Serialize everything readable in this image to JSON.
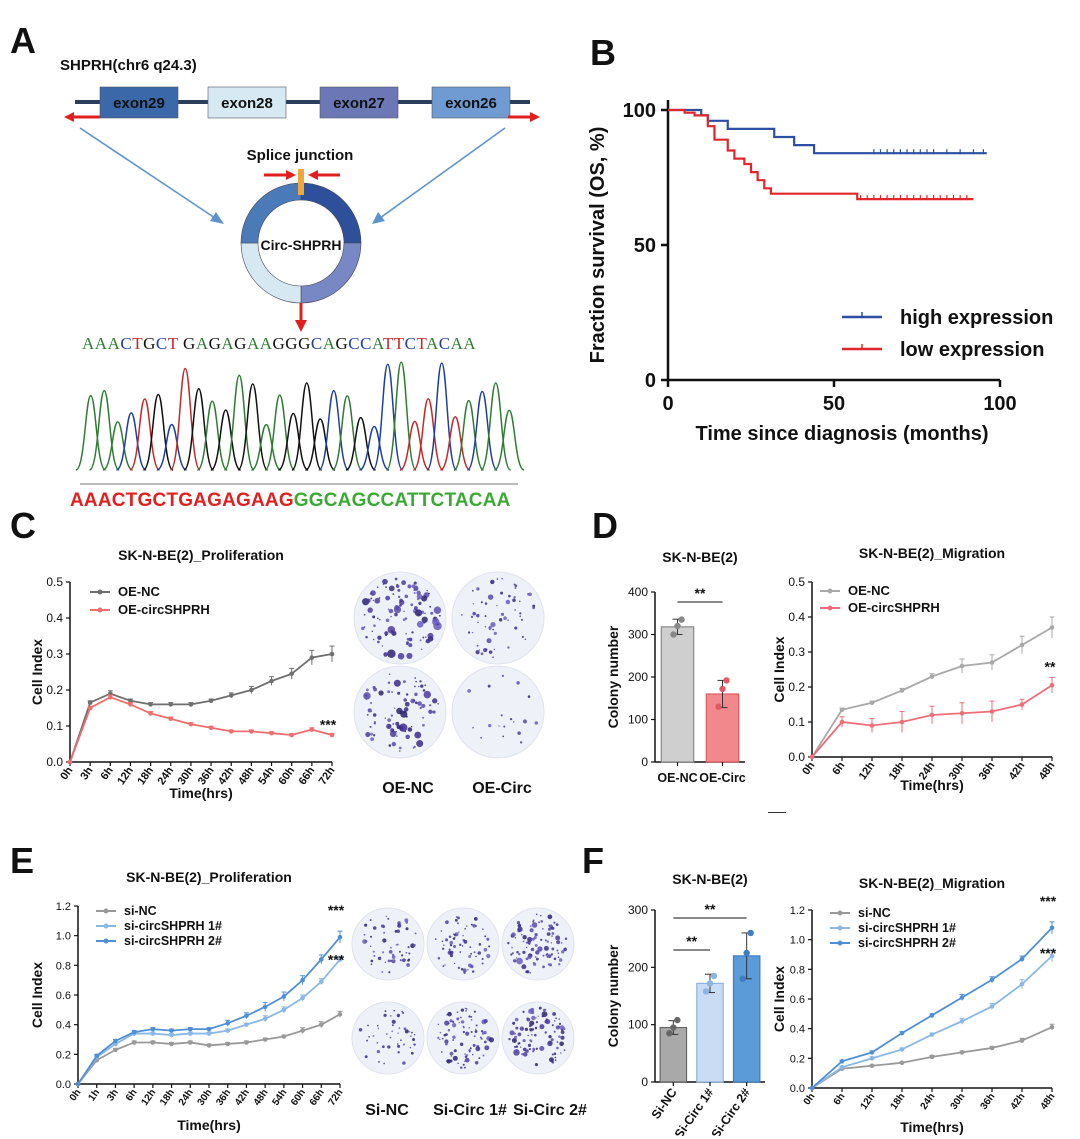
{
  "panels": {
    "A": "A",
    "B": "B",
    "C": "C",
    "D": "D",
    "E": "E",
    "F": "F"
  },
  "panelA": {
    "gene_title": "SHPRH(chr6 q24.3)",
    "exons": [
      {
        "label": "exon29",
        "color": "#3b68a8"
      },
      {
        "label": "exon28",
        "color": "#d7e9f3"
      },
      {
        "label": "exon27",
        "color": "#6b78b5"
      },
      {
        "label": "exon26",
        "color": "#6f9bd2"
      }
    ],
    "splice_label": "Splice junction",
    "circ_label": "Circ-SHPRH",
    "seq_top": [
      {
        "b": "A",
        "c": "#2e7d32"
      },
      {
        "b": "A",
        "c": "#2e7d32"
      },
      {
        "b": "A",
        "c": "#2e7d32"
      },
      {
        "b": "C",
        "c": "#1f3fa0"
      },
      {
        "b": "T",
        "c": "#c62828"
      },
      {
        "b": "G",
        "c": "#111111"
      },
      {
        "b": "C",
        "c": "#1f3fa0"
      },
      {
        "b": "T",
        "c": "#c62828"
      },
      {
        "b": " ",
        "c": "#111"
      },
      {
        "b": "G",
        "c": "#111111"
      },
      {
        "b": "A",
        "c": "#2e7d32"
      },
      {
        "b": "G",
        "c": "#111111"
      },
      {
        "b": "A",
        "c": "#2e7d32"
      },
      {
        "b": "G",
        "c": "#111111"
      },
      {
        "b": "A",
        "c": "#2e7d32"
      },
      {
        "b": "A",
        "c": "#2e7d32"
      },
      {
        "b": "G",
        "c": "#111111"
      },
      {
        "b": "G",
        "c": "#111111"
      },
      {
        "b": "G",
        "c": "#111111"
      },
      {
        "b": "C",
        "c": "#1f3fa0"
      },
      {
        "b": "A",
        "c": "#2e7d32"
      },
      {
        "b": "G",
        "c": "#111111"
      },
      {
        "b": "C",
        "c": "#1f3fa0"
      },
      {
        "b": "C",
        "c": "#1f3fa0"
      },
      {
        "b": "A",
        "c": "#2e7d32"
      },
      {
        "b": "T",
        "c": "#c62828"
      },
      {
        "b": "T",
        "c": "#c62828"
      },
      {
        "b": "C",
        "c": "#1f3fa0"
      },
      {
        "b": "T",
        "c": "#c62828"
      },
      {
        "b": "A",
        "c": "#2e7d32"
      },
      {
        "b": "C",
        "c": "#1f3fa0"
      },
      {
        "b": "A",
        "c": "#2e7d32"
      },
      {
        "b": "A",
        "c": "#2e7d32"
      }
    ],
    "seq_red": "AAACTGCTGAGAGAAG",
    "seq_green": "GGCAGCCATTCTACAA",
    "seq_red_color": "#e02020",
    "seq_green_color": "#3aaa35"
  },
  "chart_data": [
    {
      "id": "B",
      "type": "line",
      "title": "",
      "xlabel": "Time since diagnosis (months)",
      "ylabel": "Fraction survival (OS, %)",
      "xlim": [
        0,
        100
      ],
      "ylim": [
        0,
        100
      ],
      "xticks": [
        "0",
        "50",
        "100"
      ],
      "yticks": [
        "0",
        "50",
        "100"
      ],
      "legend_position": "bottom-right",
      "series": [
        {
          "name": "high expression",
          "color": "#2a4fa3",
          "steps": [
            [
              0,
              100
            ],
            [
              10,
              98
            ],
            [
              12,
              96
            ],
            [
              18,
              93
            ],
            [
              32,
              90
            ],
            [
              38,
              87
            ],
            [
              44,
              84
            ],
            [
              96,
              84
            ]
          ],
          "censor": [
            [
              62,
              84
            ],
            [
              64,
              84
            ],
            [
              66,
              84
            ],
            [
              68,
              84
            ],
            [
              70,
              84
            ],
            [
              72,
              84
            ],
            [
              74,
              84
            ],
            [
              76,
              84
            ],
            [
              78,
              84
            ],
            [
              80,
              84
            ],
            [
              84,
              84
            ],
            [
              88,
              84
            ],
            [
              92,
              84
            ],
            [
              95,
              84
            ]
          ]
        },
        {
          "name": "low expression",
          "color": "#e0262a",
          "steps": [
            [
              0,
              100
            ],
            [
              5,
              99
            ],
            [
              8,
              98
            ],
            [
              12,
              94
            ],
            [
              14,
              89
            ],
            [
              18,
              85
            ],
            [
              20,
              82
            ],
            [
              23,
              80
            ],
            [
              25,
              77
            ],
            [
              27,
              74
            ],
            [
              29,
              71
            ],
            [
              31,
              69
            ],
            [
              57,
              69
            ],
            [
              57,
              67
            ],
            [
              92,
              67
            ]
          ],
          "censor": [
            [
              58,
              67
            ],
            [
              60,
              67
            ],
            [
              62,
              67
            ],
            [
              64,
              67
            ],
            [
              66,
              67
            ],
            [
              68,
              67
            ],
            [
              70,
              67
            ],
            [
              72,
              67
            ],
            [
              74,
              67
            ],
            [
              76,
              67
            ],
            [
              78,
              67
            ],
            [
              80,
              67
            ],
            [
              82,
              67
            ],
            [
              84,
              67
            ],
            [
              86,
              67
            ],
            [
              88,
              67
            ],
            [
              90,
              67
            ]
          ]
        }
      ]
    },
    {
      "id": "C",
      "type": "line",
      "title": "SK-N-BE(2)_Proliferation",
      "xlabel": "Time(hrs)",
      "ylabel": "Cell Index",
      "categories": [
        "0h",
        "3h",
        "6h",
        "12h",
        "18h",
        "24h",
        "30h",
        "36h",
        "42h",
        "48h",
        "54h",
        "60h",
        "66h",
        "72h"
      ],
      "ylim": [
        0,
        0.5
      ],
      "yticks": [
        "0.0",
        "0.1",
        "0.2",
        "0.3",
        "0.4",
        "0.5"
      ],
      "legend_position": "top-left",
      "annotations": [
        {
          "text": "***",
          "at": "OE-circSHPRH:72h"
        }
      ],
      "series": [
        {
          "name": "OE-NC",
          "color": "#6f6f6f",
          "values": [
            0,
            0.165,
            0.19,
            0.17,
            0.16,
            0.16,
            0.16,
            0.17,
            0.185,
            0.2,
            0.225,
            0.245,
            0.29,
            0.3
          ],
          "err": [
            0,
            0.005,
            0.008,
            0.005,
            0.005,
            0.005,
            0.005,
            0.005,
            0.007,
            0.01,
            0.012,
            0.015,
            0.02,
            0.022
          ]
        },
        {
          "name": "OE-circSHPRH",
          "color": "#ee6d6d",
          "values": [
            0,
            0.15,
            0.18,
            0.16,
            0.135,
            0.12,
            0.105,
            0.095,
            0.085,
            0.085,
            0.08,
            0.075,
            0.09,
            0.075
          ],
          "err": [
            0,
            0.005,
            0.006,
            0.005,
            0.005,
            0.005,
            0.004,
            0.004,
            0.004,
            0.004,
            0.004,
            0.004,
            0.005,
            0.004
          ]
        }
      ]
    },
    {
      "id": "D1",
      "type": "bar",
      "title": "SK-N-BE(2)",
      "ylabel": "Colony number",
      "categories": [
        "OE-NC",
        "OE-Circ"
      ],
      "values": [
        318,
        160
      ],
      "err": [
        18,
        32
      ],
      "points": [
        [
          300,
          320,
          335
        ],
        [
          130,
          172,
          192
        ]
      ],
      "colors": [
        "#cfcfcf",
        "#f2878c"
      ],
      "edge_colors": [
        "#888888",
        "#e05a62"
      ],
      "ylim": [
        0,
        400
      ],
      "yticks": [
        "0",
        "100",
        "200",
        "300",
        "400"
      ],
      "annotations": [
        {
          "text": "**",
          "between": [
            "OE-NC",
            "OE-Circ"
          ]
        }
      ]
    },
    {
      "id": "D2",
      "type": "line",
      "title": "SK-N-BE(2)_Migration",
      "xlabel": "Time(hrs)",
      "ylabel": "Cell Index",
      "categories": [
        "0h",
        "6h",
        "12h",
        "18h",
        "24h",
        "30h",
        "36h",
        "42h",
        "48h"
      ],
      "ylim": [
        0,
        0.5
      ],
      "yticks": [
        "0.0",
        "0.1",
        "0.2",
        "0.3",
        "0.4",
        "0.5"
      ],
      "legend_position": "top-left",
      "annotations": [
        {
          "text": "**",
          "at": "OE-circSHPRH:48h"
        }
      ],
      "series": [
        {
          "name": "OE-NC",
          "color": "#a8a8a8",
          "values": [
            0,
            0.135,
            0.155,
            0.19,
            0.23,
            0.26,
            0.27,
            0.32,
            0.37
          ],
          "err": [
            0,
            0.005,
            0.005,
            0.006,
            0.008,
            0.02,
            0.022,
            0.025,
            0.03
          ]
        },
        {
          "name": "OE-circSHPRH",
          "color": "#ee6d78",
          "values": [
            0,
            0.1,
            0.09,
            0.1,
            0.12,
            0.125,
            0.13,
            0.15,
            0.205
          ],
          "err": [
            0,
            0.015,
            0.02,
            0.03,
            0.025,
            0.03,
            0.03,
            0.015,
            0.022
          ]
        }
      ]
    },
    {
      "id": "E",
      "type": "line",
      "title": "SK-N-BE(2)_Proliferation",
      "xlabel": "Time(hrs)",
      "ylabel": "Cell Index",
      "categories": [
        "0h",
        "1h",
        "3h",
        "6h",
        "12h",
        "18h",
        "24h",
        "30h",
        "36h",
        "42h",
        "48h",
        "54h",
        "60h",
        "66h",
        "72h"
      ],
      "ylim": [
        0,
        1.2
      ],
      "yticks": [
        "0.0",
        "0.2",
        "0.4",
        "0.6",
        "0.8",
        "1.0",
        "1.2"
      ],
      "legend_position": "top-left",
      "annotations": [
        {
          "text": "***",
          "at": "si-circSHPRH 2#:72h"
        },
        {
          "text": "***",
          "at": "si-circSHPRH 1#:72h"
        }
      ],
      "series": [
        {
          "name": "si-NC",
          "color": "#999999",
          "values": [
            0,
            0.16,
            0.23,
            0.28,
            0.28,
            0.27,
            0.28,
            0.26,
            0.27,
            0.28,
            0.3,
            0.32,
            0.36,
            0.4,
            0.47
          ],
          "err": [
            0,
            0.01,
            0.01,
            0.01,
            0.01,
            0.01,
            0.01,
            0.01,
            0.01,
            0.01,
            0.01,
            0.01,
            0.02,
            0.02,
            0.02
          ]
        },
        {
          "name": "si-circSHPRH 1#",
          "color": "#8ab8e6",
          "values": [
            0,
            0.18,
            0.27,
            0.34,
            0.34,
            0.33,
            0.34,
            0.34,
            0.36,
            0.4,
            0.44,
            0.5,
            0.58,
            0.69,
            0.84
          ],
          "err": [
            0,
            0.01,
            0.01,
            0.01,
            0.01,
            0.01,
            0.01,
            0.01,
            0.01,
            0.01,
            0.02,
            0.02,
            0.02,
            0.02,
            0.02
          ]
        },
        {
          "name": "si-circSHPRH 2#",
          "color": "#4f8fd6",
          "values": [
            0,
            0.19,
            0.29,
            0.35,
            0.37,
            0.36,
            0.37,
            0.37,
            0.41,
            0.46,
            0.52,
            0.59,
            0.7,
            0.84,
            0.99
          ],
          "err": [
            0,
            0.01,
            0.01,
            0.01,
            0.01,
            0.01,
            0.01,
            0.01,
            0.02,
            0.02,
            0.03,
            0.03,
            0.03,
            0.03,
            0.04
          ]
        }
      ]
    },
    {
      "id": "F1",
      "type": "bar",
      "title": "SK-N-BE(2)",
      "ylabel": "Colony number",
      "categories": [
        "Si-NC",
        "Si-Circ 1#",
        "Si-Circ 2#"
      ],
      "values": [
        95,
        172,
        220
      ],
      "err": [
        12,
        16,
        40
      ],
      "points": [
        [
          85,
          95,
          108
        ],
        [
          158,
          172,
          185
        ],
        [
          180,
          225,
          260
        ]
      ],
      "colors": [
        "#a9a9a9",
        "#c9dcf3",
        "#5b9bd8"
      ],
      "edge_colors": [
        "#666666",
        "#8ab4e2",
        "#3e7dc2"
      ],
      "ylim": [
        0,
        300
      ],
      "yticks": [
        "0",
        "100",
        "200",
        "300"
      ],
      "annotations": [
        {
          "text": "**",
          "between": [
            "Si-NC",
            "Si-Circ 1#"
          ]
        },
        {
          "text": "**",
          "between": [
            "Si-NC",
            "Si-Circ 2#"
          ]
        }
      ]
    },
    {
      "id": "F2",
      "type": "line",
      "title": "SK-N-BE(2)_Migration",
      "xlabel": "Time(hrs)",
      "ylabel": "Cell Index",
      "categories": [
        "0h",
        "6h",
        "12h",
        "18h",
        "24h",
        "30h",
        "36h",
        "42h",
        "48h"
      ],
      "ylim": [
        0,
        1.2
      ],
      "yticks": [
        "0.0",
        "0.2",
        "0.4",
        "0.6",
        "0.8",
        "1.0",
        "1.2"
      ],
      "legend_position": "top-left",
      "annotations": [
        {
          "text": "***",
          "at": "si-circSHPRH 2#:48h"
        },
        {
          "text": "***",
          "at": "si-circSHPRH 1#:48h"
        }
      ],
      "series": [
        {
          "name": "si-NC",
          "color": "#999999",
          "values": [
            0,
            0.13,
            0.15,
            0.17,
            0.21,
            0.24,
            0.27,
            0.32,
            0.41
          ],
          "err": [
            0,
            0.005,
            0.005,
            0.005,
            0.01,
            0.01,
            0.01,
            0.015,
            0.02
          ]
        },
        {
          "name": "si-circSHPRH 1#",
          "color": "#8ab8e6",
          "values": [
            0,
            0.14,
            0.2,
            0.26,
            0.36,
            0.45,
            0.55,
            0.7,
            0.89
          ],
          "err": [
            0,
            0.005,
            0.01,
            0.01,
            0.01,
            0.02,
            0.02,
            0.03,
            0.04
          ]
        },
        {
          "name": "si-circSHPRH 2#",
          "color": "#4f8fd6",
          "values": [
            0,
            0.18,
            0.24,
            0.37,
            0.49,
            0.61,
            0.73,
            0.87,
            1.08
          ],
          "err": [
            0,
            0.005,
            0.01,
            0.01,
            0.01,
            0.02,
            0.02,
            0.02,
            0.04
          ]
        }
      ]
    }
  ],
  "dishes": {
    "C": [
      "OE-NC",
      "OE-Circ"
    ],
    "E": [
      "Si-NC",
      "Si-Circ 1#",
      "Si-Circ 2#"
    ]
  }
}
